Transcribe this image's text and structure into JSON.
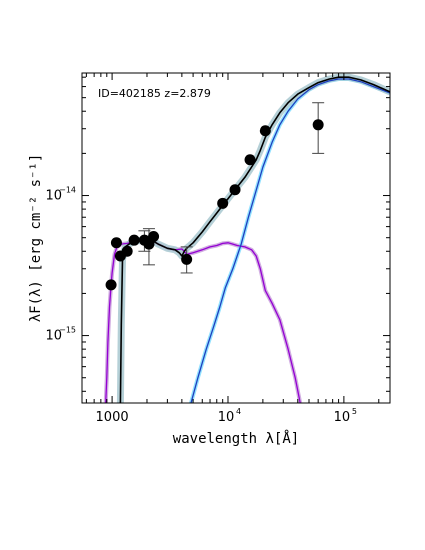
{
  "chart_data": {
    "type": "scatter",
    "title": "",
    "annotation": "ID=402185 z=2.879",
    "xlabel": "wavelength λ[Å]",
    "ylabel": "λF(λ) [erg cm⁻² s⁻¹]",
    "xscale": "log",
    "yscale": "log",
    "xlim": [
      550,
      250000
    ],
    "ylim": [
      3.3e-16,
      7.5e-14
    ],
    "grid": false,
    "x_ticks": [
      {
        "label": "1000",
        "base": "",
        "exp": "",
        "value": 1000
      },
      {
        "label": "",
        "base": "10",
        "exp": "4",
        "value": 10000
      },
      {
        "label": "",
        "base": "10",
        "exp": "5",
        "value": 100000
      }
    ],
    "y_ticks": [
      {
        "base": "10",
        "exp": "−15",
        "value": 1e-15
      },
      {
        "base": "10",
        "exp": "−14",
        "value": 1e-14
      }
    ],
    "colors": {
      "total": "#000000",
      "stellar": "#9400d3",
      "stellar_band": "#c9a0dc",
      "dust": "#1f3fbf",
      "dust_band": "#7fdcff",
      "total_band": "#a8c8d0",
      "points": "#000000"
    },
    "points": [
      {
        "x": 980,
        "y": 2.3e-15,
        "yerr_low": null,
        "yerr_high": null
      },
      {
        "x": 1090,
        "y": 4.6e-15,
        "yerr_low": null,
        "yerr_high": null
      },
      {
        "x": 1180,
        "y": 3.7e-15,
        "yerr_low": null,
        "yerr_high": null
      },
      {
        "x": 1350,
        "y": 4e-15,
        "yerr_low": null,
        "yerr_high": null
      },
      {
        "x": 1550,
        "y": 4.8e-15,
        "yerr_low": null,
        "yerr_high": null
      },
      {
        "x": 1900,
        "y": 4.8e-15,
        "yerr_low": 4e-15,
        "yerr_high": 5.6e-15
      },
      {
        "x": 2080,
        "y": 4.5e-15,
        "yerr_low": 3.2e-15,
        "yerr_high": 5.8e-15
      },
      {
        "x": 2280,
        "y": 5.1e-15,
        "yerr_low": null,
        "yerr_high": null
      },
      {
        "x": 4400,
        "y": 3.5e-15,
        "yerr_low": 2.8e-15,
        "yerr_high": 4.3e-15
      },
      {
        "x": 9000,
        "y": 8.8e-15,
        "yerr_low": null,
        "yerr_high": null
      },
      {
        "x": 11500,
        "y": 1.1e-14,
        "yerr_low": null,
        "yerr_high": null
      },
      {
        "x": 15500,
        "y": 1.8e-14,
        "yerr_low": null,
        "yerr_high": null
      },
      {
        "x": 21000,
        "y": 2.9e-14,
        "yerr_low": null,
        "yerr_high": null
      },
      {
        "x": 60000,
        "y": 3.2e-14,
        "yerr_low": 2e-14,
        "yerr_high": 4.6e-14
      }
    ],
    "series": [
      {
        "key": "stellar",
        "x": [
          880,
          900,
          920,
          950,
          980,
          1000,
          1050,
          1100,
          1200,
          1350,
          1550,
          1800,
          2100,
          2500,
          3000,
          3500,
          4000,
          4200,
          4400,
          5000,
          6000,
          7000,
          8000,
          9000,
          10000,
          11000,
          12000,
          14000,
          16000,
          17500,
          19000,
          21000,
          24000,
          28000,
          33000,
          38000,
          42000
        ],
        "y": [
          3.3e-16,
          5e-16,
          9e-16,
          1.6e-15,
          2.3e-15,
          2.8e-15,
          3.8e-15,
          4.3e-15,
          4.5e-15,
          4.55e-15,
          4.7e-15,
          4.8e-15,
          4.9e-15,
          4.5e-15,
          4.2e-15,
          4.1e-15,
          4.15e-15,
          4e-15,
          3.8e-15,
          3.9e-15,
          4.1e-15,
          4.3e-15,
          4.4e-15,
          4.55e-15,
          4.6e-15,
          4.5e-15,
          4.4e-15,
          4.3e-15,
          4.1e-15,
          3.7e-15,
          3e-15,
          2.1e-15,
          1.7e-15,
          1.3e-15,
          8e-16,
          5e-16,
          3.3e-16
        ]
      },
      {
        "key": "dust",
        "x": [
          4800,
          5500,
          6500,
          7500,
          8500,
          9500,
          11000,
          13000,
          15000,
          17000,
          20000,
          24000,
          28000,
          33000,
          40000,
          50000,
          60000,
          75000,
          90000,
          110000,
          140000,
          180000,
          250000
        ],
        "y": [
          3.3e-16,
          5e-16,
          8e-16,
          1.15e-15,
          1.6e-15,
          2.2e-15,
          3e-15,
          4.5e-15,
          7e-15,
          1e-14,
          1.6e-14,
          2.4e-14,
          3.2e-14,
          4e-14,
          4.9e-14,
          5.7e-14,
          6.2e-14,
          6.6e-14,
          6.8e-14,
          6.8e-14,
          6.5e-14,
          6e-14,
          5.4e-14
        ]
      },
      {
        "key": "total",
        "x": [
          1180,
          1200,
          1230,
          1300,
          1400,
          1550,
          1800,
          2100,
          2500,
          3000,
          3500,
          3800,
          4000,
          4200,
          4400,
          5000,
          6000,
          7000,
          8000,
          9000,
          10000,
          11000,
          12000,
          14000,
          16000,
          17500,
          19000,
          21000,
          24000,
          28000,
          33000,
          40000,
          50000,
          60000,
          75000,
          90000,
          110000,
          140000,
          180000,
          250000
        ],
        "y": [
          3.3e-16,
          1.2e-15,
          3.5e-15,
          4.3e-15,
          4.5e-15,
          4.7e-15,
          4.8e-15,
          4.9e-15,
          4.5e-15,
          4.2e-15,
          4.1e-15,
          3.9e-15,
          3.7e-15,
          4e-15,
          4.2e-15,
          4.6e-15,
          5.5e-15,
          6.5e-15,
          7.5e-15,
          8.5e-15,
          9.5e-15,
          1.05e-14,
          1.15e-14,
          1.35e-14,
          1.6e-14,
          1.8e-14,
          2.1e-14,
          2.6e-14,
          3.2e-14,
          3.9e-14,
          4.6e-14,
          5.3e-14,
          5.9e-14,
          6.4e-14,
          6.8e-14,
          7e-14,
          7e-14,
          6.7e-14,
          6.2e-14,
          5.5e-14
        ]
      }
    ]
  }
}
